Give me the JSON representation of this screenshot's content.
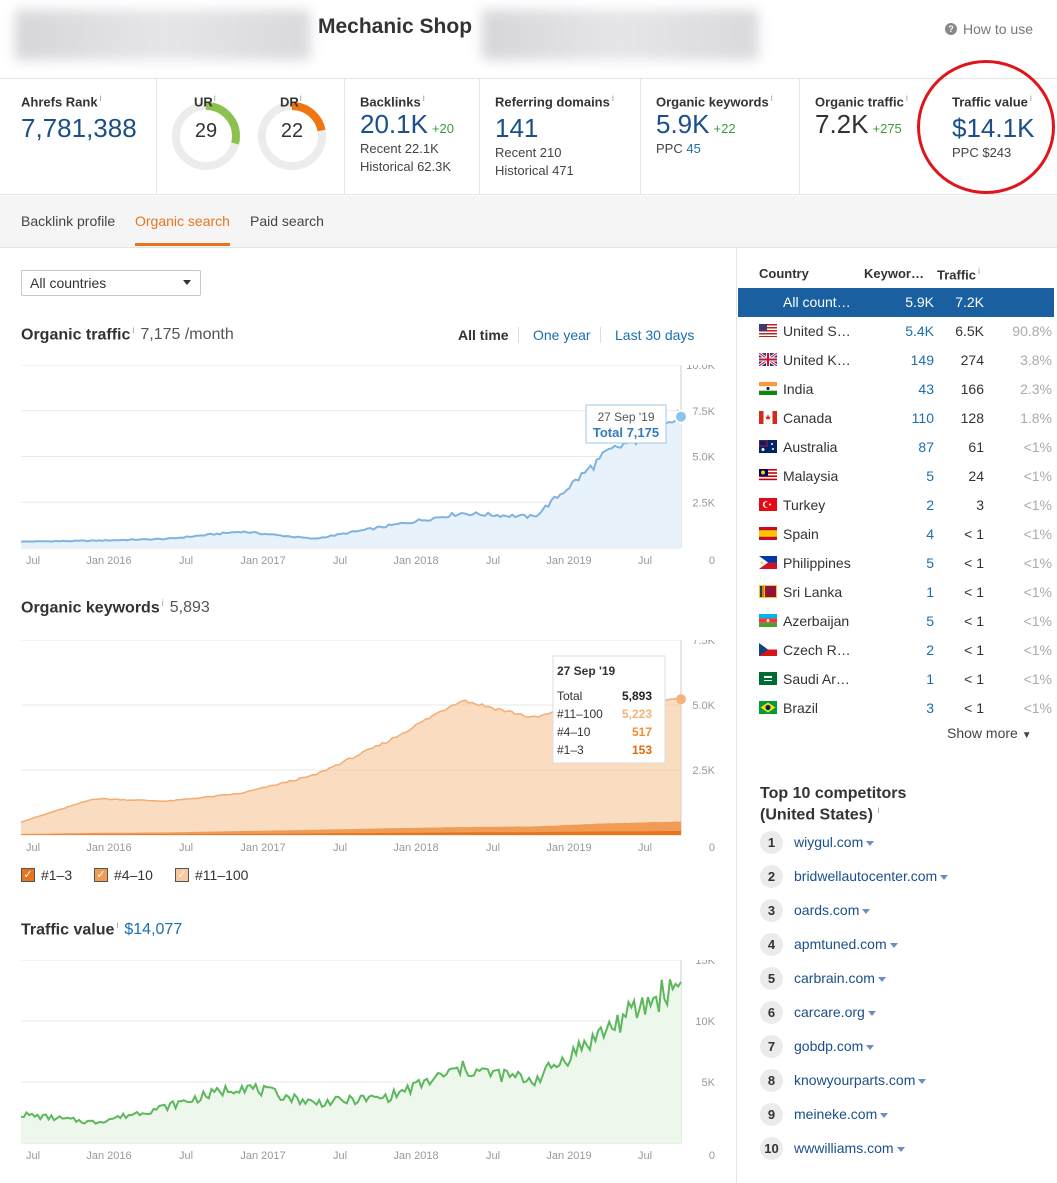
{
  "header": {
    "site_name": "Mechanic Shop",
    "how_to_use": "How to use"
  },
  "metrics": {
    "ahrefs_rank": {
      "label": "Ahrefs Rank",
      "value": "7,781,388"
    },
    "ur": {
      "label": "UR",
      "value": "29",
      "level": 29
    },
    "dr": {
      "label": "DR",
      "value": "22",
      "level": 22
    },
    "backlinks": {
      "label": "Backlinks",
      "value": "20.1K",
      "delta": "+20",
      "recent": "Recent 22.1K",
      "historical": "Historical 62.3K"
    },
    "referring_domains": {
      "label": "Referring domains",
      "value": "141",
      "recent": "Recent 210",
      "historical": "Historical 471"
    },
    "organic_keywords": {
      "label": "Organic keywords",
      "value": "5.9K",
      "delta": "+22",
      "ppc_label": "PPC",
      "ppc_value": "45"
    },
    "organic_traffic": {
      "label": "Organic traffic",
      "value": "7.2K",
      "delta": "+275"
    },
    "traffic_value": {
      "label": "Traffic value",
      "value": "$14.1K",
      "ppc": "PPC $243"
    }
  },
  "tabs": [
    "Backlink profile",
    "Organic search",
    "Paid search"
  ],
  "active_tab": "Organic search",
  "country_select": "All countries",
  "organic_traffic_section": {
    "title": "Organic traffic",
    "value": "7,175 /month",
    "ranges": [
      "All time",
      "One year",
      "Last 30 days"
    ]
  },
  "organic_keywords_section": {
    "title": "Organic keywords",
    "value": "5,893"
  },
  "traffic_value_section": {
    "title": "Traffic value",
    "value": "$14,077"
  },
  "x_ticks": [
    "Jul",
    "Jan 2016",
    "Jul",
    "Jan 2017",
    "Jul",
    "Jan 2018",
    "Jul",
    "Jan 2019",
    "Jul"
  ],
  "charts": {
    "traffic_tooltip": {
      "date": "27 Sep '19",
      "total": "Total 7,175"
    },
    "keywords_tooltip": {
      "date": "27 Sep '19",
      "rows": [
        {
          "label": "Total",
          "value": "5,893"
        },
        {
          "label": "#11–100",
          "value": "5,223"
        },
        {
          "label": "#4–10",
          "value": "517"
        },
        {
          "label": "#1–3",
          "value": "153"
        }
      ]
    },
    "legend": [
      "#1–3",
      "#4–10",
      "#11–100"
    ]
  },
  "chart_data": [
    {
      "type": "area",
      "title": "Organic traffic",
      "x": [
        "Jul 2015",
        "Jan 2016",
        "Jul 2016",
        "Jan 2017",
        "Jul 2017",
        "Jan 2018",
        "Jul 2018",
        "Jan 2019",
        "Jul 2019",
        "Sep 2019"
      ],
      "series": [
        {
          "values": [
            350,
            400,
            500,
            900,
            500,
            1200,
            1900,
            1700,
            5200,
            7175
          ]
        }
      ],
      "ylim": [
        0,
        10000
      ],
      "y_ticks": [
        "0",
        "2.5K",
        "5.0K",
        "7.5K",
        "10.0K"
      ],
      "color": "#7fb3e0"
    },
    {
      "type": "area",
      "title": "Organic keywords",
      "x": [
        "Jul 2015",
        "Jan 2016",
        "Jul 2016",
        "Jan 2017",
        "Jul 2017",
        "Jan 2018",
        "Jul 2018",
        "Jan 2019",
        "Jul 2019",
        "Sep 2019"
      ],
      "series": [
        {
          "name": "#11–100",
          "values": [
            500,
            1400,
            1300,
            1600,
            2300,
            3600,
            5200,
            4500,
            5300,
            5223
          ]
        },
        {
          "name": "#4–10",
          "values": [
            40,
            80,
            100,
            150,
            200,
            260,
            300,
            330,
            450,
            517
          ]
        },
        {
          "name": "#1–3",
          "values": [
            10,
            20,
            30,
            40,
            60,
            80,
            100,
            110,
            140,
            153
          ]
        }
      ],
      "ylim": [
        0,
        7500
      ],
      "y_ticks": [
        "0",
        "2.5K",
        "5.0K",
        "7.5K"
      ],
      "colors": [
        "#f8c9a0",
        "#f09c55",
        "#e8741b"
      ]
    },
    {
      "type": "area",
      "title": "Traffic value",
      "x": [
        "Jul 2015",
        "Jan 2016",
        "Jul 2016",
        "Jan 2017",
        "Jul 2017",
        "Jan 2018",
        "Jul 2018",
        "Jan 2019",
        "Jul 2019",
        "Sep 2019"
      ],
      "series": [
        {
          "values": [
            2500,
            1800,
            3200,
            5000,
            3500,
            4000,
            6500,
            5500,
            10000,
            14077
          ]
        }
      ],
      "ylim": [
        0,
        16000
      ],
      "y_ticks": [
        "0",
        "5K",
        "10K",
        "15K"
      ],
      "color": "#5cb85c"
    }
  ],
  "countries": {
    "headers": {
      "country": "Country",
      "keywords": "Keywor…",
      "traffic": "Traffic"
    },
    "rows": [
      {
        "name": "All count…",
        "kw": "5.9K",
        "traffic": "7.2K",
        "pct": "",
        "flag": ""
      },
      {
        "name": "United S…",
        "kw": "5.4K",
        "traffic": "6.5K",
        "pct": "90.8%",
        "flag": "us"
      },
      {
        "name": "United K…",
        "kw": "149",
        "traffic": "274",
        "pct": "3.8%",
        "flag": "uk"
      },
      {
        "name": "India",
        "kw": "43",
        "traffic": "166",
        "pct": "2.3%",
        "flag": "in"
      },
      {
        "name": "Canada",
        "kw": "110",
        "traffic": "128",
        "pct": "1.8%",
        "flag": "ca"
      },
      {
        "name": "Australia",
        "kw": "87",
        "traffic": "61",
        "pct": "<1%",
        "flag": "au"
      },
      {
        "name": "Malaysia",
        "kw": "5",
        "traffic": "24",
        "pct": "<1%",
        "flag": "my"
      },
      {
        "name": "Turkey",
        "kw": "2",
        "traffic": "3",
        "pct": "<1%",
        "flag": "tr"
      },
      {
        "name": "Spain",
        "kw": "4",
        "traffic": "< 1",
        "pct": "<1%",
        "flag": "es"
      },
      {
        "name": "Philippines",
        "kw": "5",
        "traffic": "< 1",
        "pct": "<1%",
        "flag": "ph"
      },
      {
        "name": "Sri Lanka",
        "kw": "1",
        "traffic": "< 1",
        "pct": "<1%",
        "flag": "lk"
      },
      {
        "name": "Azerbaijan",
        "kw": "5",
        "traffic": "< 1",
        "pct": "<1%",
        "flag": "az"
      },
      {
        "name": "Czech R…",
        "kw": "2",
        "traffic": "< 1",
        "pct": "<1%",
        "flag": "cz"
      },
      {
        "name": "Saudi Ar…",
        "kw": "1",
        "traffic": "< 1",
        "pct": "<1%",
        "flag": "sa"
      },
      {
        "name": "Brazil",
        "kw": "3",
        "traffic": "< 1",
        "pct": "<1%",
        "flag": "br"
      }
    ],
    "show_more": "Show more"
  },
  "competitors": {
    "title_line1": "Top 10 competitors",
    "title_line2": "(United States)",
    "items": [
      {
        "rank": "1",
        "domain": "wiygul.com"
      },
      {
        "rank": "2",
        "domain": "bridwellautocenter.com"
      },
      {
        "rank": "3",
        "domain": "oards.com"
      },
      {
        "rank": "4",
        "domain": "apmtuned.com"
      },
      {
        "rank": "5",
        "domain": "carbrain.com"
      },
      {
        "rank": "6",
        "domain": "carcare.org"
      },
      {
        "rank": "7",
        "domain": "gobdp.com"
      },
      {
        "rank": "8",
        "domain": "knowyourparts.com"
      },
      {
        "rank": "9",
        "domain": "meineke.com"
      },
      {
        "rank": "10",
        "domain": "wwwilliams.com"
      }
    ]
  }
}
